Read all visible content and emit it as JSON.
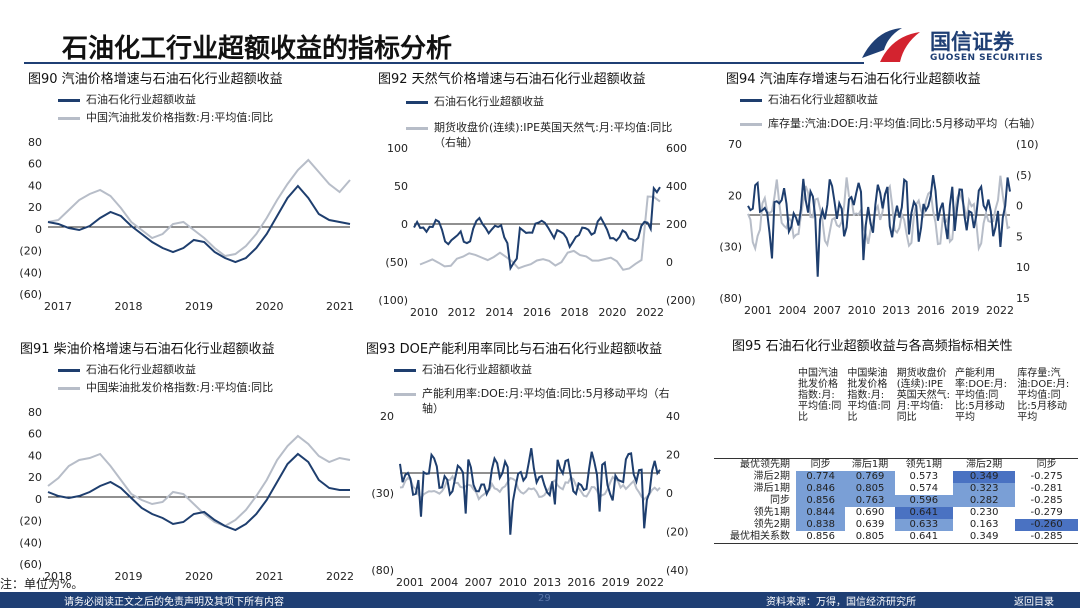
{
  "title": "石油化工行业超额收益的指标分析",
  "logo": {
    "name_cn": "国信证券",
    "name_en": "GUOSEN SECURITIES"
  },
  "charts": {
    "fig90": {
      "caption": "图90 汽油价格增速与石油石化行业超额收益",
      "legend": [
        "石油石化行业超额收益",
        "中国汽油批发价格指数:月:平均值:同比"
      ],
      "y_ticks": [
        "80",
        "60",
        "40",
        "20",
        "0",
        "(20)",
        "(40)",
        "(60)"
      ],
      "x_ticks": [
        "2017",
        "2018",
        "2019",
        "2020",
        "2021"
      ]
    },
    "fig91": {
      "caption": "图91 柴油价格增速与石油石化行业超额收益",
      "legend": [
        "石油石化行业超额收益",
        "中国柴油批发价格指数:月:平均值:同比"
      ],
      "y_ticks": [
        "80",
        "60",
        "40",
        "20",
        "0",
        "(20)",
        "(40)",
        "(60)"
      ],
      "x_ticks": [
        "2018",
        "2019",
        "2020",
        "2021",
        "2022"
      ]
    },
    "fig92": {
      "caption": "图92 天然气价格增速与石油石化行业超额收益",
      "legend": [
        "石油石化行业超额收益",
        "期货收盘价(连续):IPE英国天然气:月:平均值:同比（右轴）"
      ],
      "y_ticks": [
        "100",
        "50",
        "0",
        "(50)",
        "(100)"
      ],
      "y2_ticks": [
        "600",
        "400",
        "200",
        "0",
        "(200)"
      ],
      "x_ticks": [
        "2010",
        "2012",
        "2014",
        "2016",
        "2018",
        "2020",
        "2022"
      ]
    },
    "fig93": {
      "caption": "图93 DOE产能利用率同比与石油石化行业超额收益",
      "legend": [
        "石油石化行业超额收益",
        "产能利用率:DOE:月:平均值:同比:5月移动平均（右轴）"
      ],
      "y_ticks": [
        "20",
        "(30)",
        "(80)"
      ],
      "y2_ticks": [
        "40",
        "20",
        "0",
        "(20)",
        "(40)"
      ],
      "x_ticks": [
        "2001",
        "2004",
        "2007",
        "2010",
        "2013",
        "2016",
        "2019",
        "2022"
      ]
    },
    "fig94": {
      "caption": "图94 汽油库存增速与石油石化行业超额收益",
      "legend": [
        "石油石化行业超额收益",
        "库存量:汽油:DOE:月:平均值:同比:5月移动平均（右轴）"
      ],
      "y_ticks": [
        "70",
        "20",
        "(30)",
        "(80)"
      ],
      "y2_ticks": [
        "(10)",
        "(5)",
        "0",
        "5",
        "10",
        "15"
      ],
      "x_ticks": [
        "2001",
        "2004",
        "2007",
        "2010",
        "2013",
        "2016",
        "2019",
        "2022"
      ]
    }
  },
  "table95": {
    "caption": "图95 石油石化行业超额收益与各高频指标相关性",
    "headers": [
      "中国汽油批发价格指数:月:平均值:同比",
      "中国柴油批发价格指数:月:平均值:同比",
      "期货收盘价(连续):IPE英国天然气:月:平均值:同比",
      "产能利用率:DOE:月:平均值:同比:5月移动平均",
      "库存量:汽油:DOE:月:平均值:同比:5月移动平均"
    ],
    "rows": [
      {
        "label": "最优领先期",
        "values": [
          "同步",
          "滞后1期",
          "领先1期",
          "滞后2期",
          "同步"
        ]
      },
      {
        "label": "滞后2期",
        "values": [
          "0.774",
          "0.769",
          "0.573",
          "0.349",
          "-0.275"
        ]
      },
      {
        "label": "滞后1期",
        "values": [
          "0.846",
          "0.805",
          "0.574",
          "0.323",
          "-0.281"
        ]
      },
      {
        "label": "同步",
        "values": [
          "0.856",
          "0.763",
          "0.596",
          "0.282",
          "-0.285"
        ]
      },
      {
        "label": "领先1期",
        "values": [
          "0.844",
          "0.690",
          "0.641",
          "0.230",
          "-0.279"
        ]
      },
      {
        "label": "领先2期",
        "values": [
          "0.838",
          "0.639",
          "0.633",
          "0.163",
          "-0.260"
        ]
      },
      {
        "label": "最优相关系数",
        "values": [
          "0.856",
          "0.805",
          "0.641",
          "0.349",
          "-0.285"
        ]
      }
    ],
    "highlight_color": "#7a9fd6",
    "highlight_dark": "#4a72c2"
  },
  "note": "注：单位为%。",
  "footer": {
    "disclaimer": "请务必阅读正文之后的免责声明及其项下所有内容",
    "page": "29",
    "source": "资料来源：万得，国信经济研究所",
    "back": "返回目录"
  },
  "colors": {
    "series_dark": "#1e3e6e",
    "series_light": "#b7bdc8",
    "brand": "#1f3f74"
  }
}
